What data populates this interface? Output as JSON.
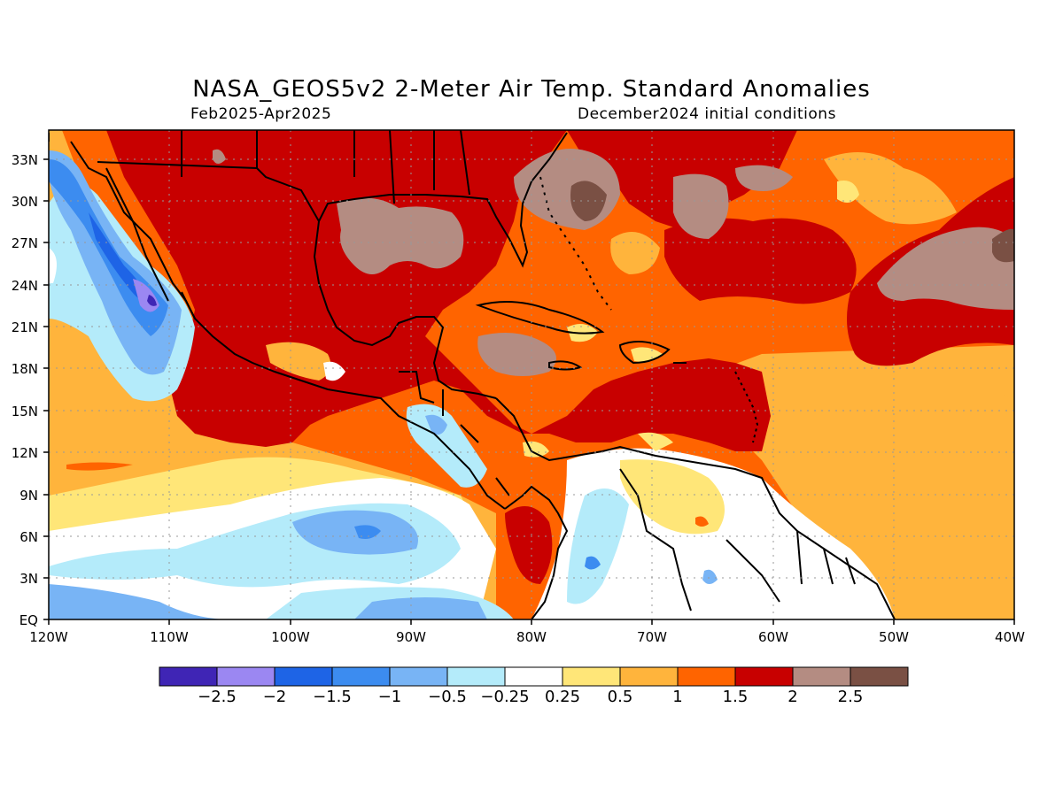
{
  "header": {
    "title": "NASA_GEOS5v2 2-Meter Air Temp. Standard Anomalies",
    "period": "Feb2025-Apr2025",
    "init": "December2024 initial conditions"
  },
  "axes": {
    "lat_labels": [
      "EQ",
      "3N",
      "6N",
      "9N",
      "12N",
      "15N",
      "18N",
      "21N",
      "24N",
      "27N",
      "30N",
      "33N"
    ],
    "lon_labels": [
      "120W",
      "110W",
      "100W",
      "90W",
      "80W",
      "70W",
      "60W",
      "50W",
      "40W"
    ]
  },
  "colorbar": {
    "colors": [
      "#3f25b5",
      "#9b87f2",
      "#1e64e6",
      "#3c8cf0",
      "#78b4f5",
      "#b4ebfa",
      "#ffffff",
      "#ffe678",
      "#ffb43c",
      "#ff6400",
      "#c80000",
      "#b48c82",
      "#7a5044"
    ],
    "labels": [
      "-2.5",
      "-2",
      "-1.5",
      "-1",
      "-0.5",
      "-0.25",
      "0.25",
      "0.5",
      "1",
      "1.5",
      "2",
      "2.5"
    ]
  }
}
